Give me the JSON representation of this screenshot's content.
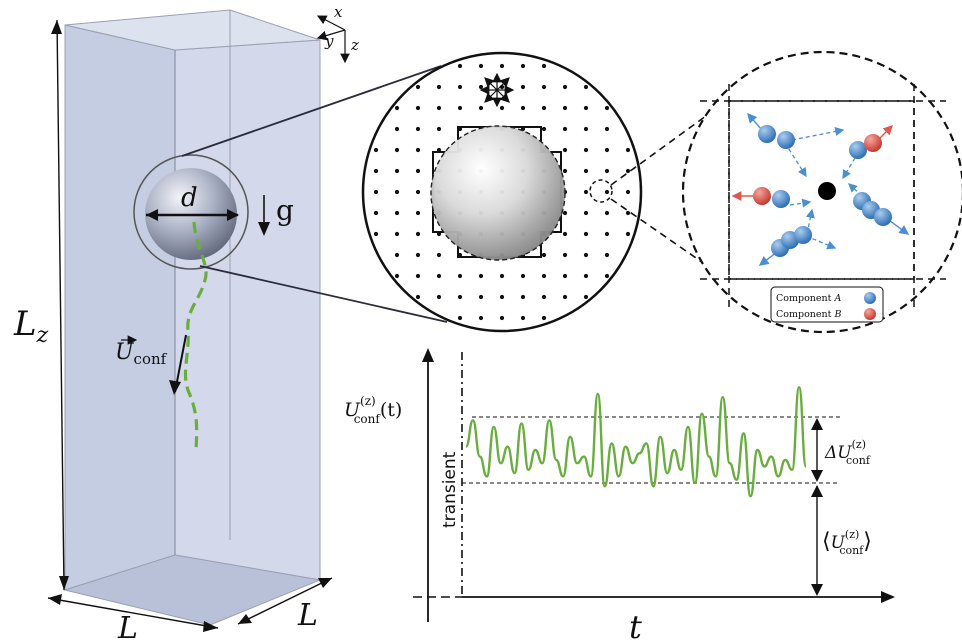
{
  "box": {
    "height_label": "L",
    "height_sub": "z",
    "width_label_bottom": "L",
    "width_label_right": "L",
    "face_color": "#c5cde3",
    "edge_color": "#9aa0b3"
  },
  "axes": {
    "x": "x",
    "y": "y",
    "z": "z"
  },
  "particle": {
    "diameter_label": "d",
    "gravity_label": "g",
    "velocity_label": "U",
    "velocity_sub": "conf"
  },
  "lattice": {
    "cutout_label": "Component",
    "components": [
      {
        "name": "A",
        "color": "#4a8fd0"
      },
      {
        "name": "B",
        "color": "#e0584c"
      }
    ]
  },
  "chart": {
    "ylabel_main": "U",
    "ylabel_sup": "(z)",
    "ylabel_sub": "conf",
    "ylabel_arg": "(t)",
    "xlabel": "t",
    "transient_label": "transient",
    "delta_label_prefix": "ΔU",
    "delta_sup": "(z)",
    "delta_sub": "conf",
    "mean_label_main": "U",
    "mean_sup": "(z)",
    "mean_sub": "conf",
    "line_color": "#6aad3f"
  },
  "chart_data": {
    "type": "line",
    "title": "",
    "xlabel": "t",
    "ylabel": "U_conf^(z)(t)",
    "series": [
      {
        "values": [
          0.55,
          0.95,
          0.4,
          0.1,
          0.85,
          0.3,
          0.55,
          0.15,
          0.9,
          0.2,
          0.5,
          0.3,
          0.95,
          0.35,
          0.1,
          0.7,
          0.3,
          0.4,
          0.1,
          1.35,
          -0.05,
          0.6,
          0.1,
          0.55,
          0.3,
          0.45,
          0.6,
          -0.05,
          0.7,
          0.15,
          0.5,
          0.2,
          0.85,
          0.0,
          1.05,
          0.4,
          0.1,
          1.3,
          0.3,
          0.05,
          0.75,
          -0.2,
          0.5,
          0.25,
          0.4,
          0.1,
          0.35,
          0.2,
          1.45,
          0.25
        ]
      }
    ],
    "annotations": [
      "transient",
      "ΔU_conf^(z)",
      "⟨U_conf^(z)⟩"
    ]
  }
}
